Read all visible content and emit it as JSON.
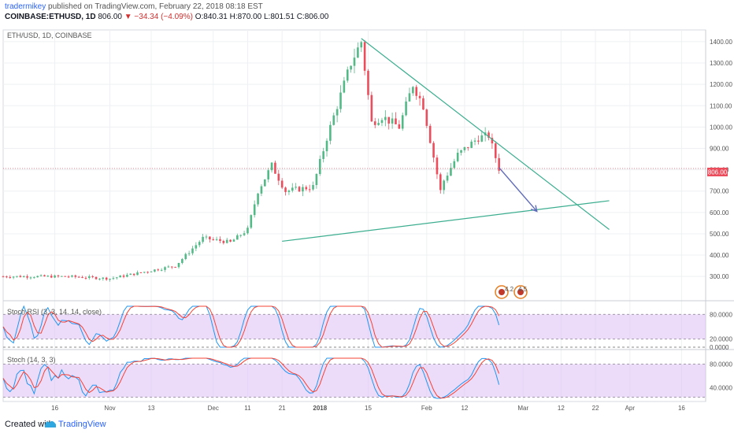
{
  "header": {
    "author": "tradermikey",
    "published": "published on TradingView.com, February 22, 2018 08:18 EST",
    "symbol": "COINBASE:ETHUSD, 1D",
    "last": "806.00",
    "change": "−34.34 (−4.09%)",
    "ohlc": "O:840.31 H:870.00 L:801.51 C:806.00"
  },
  "main_pane": {
    "legend": "ETH/USD, 1D, COINBASE",
    "price_label": "806.00",
    "event_badges": [
      "4.2",
      "4.5"
    ]
  },
  "rsi_pane": {
    "legend": "Stoch RSI (3, 3, 14, 14, close)",
    "levels": [
      "80.0000",
      "20.0000",
      "0.0000"
    ]
  },
  "stoch_pane": {
    "legend": "Stoch (14, 3, 3)",
    "levels": [
      "80.0000",
      "40.0000"
    ]
  },
  "footer": {
    "created": "Created with",
    "brand": "TradingView"
  },
  "colors": {
    "up": "#53b987",
    "down": "#eb4d5c",
    "trend": "#3cae8f",
    "arrow": "#5f6bb8",
    "band": "#e0c4f7",
    "k": "#2196f3",
    "d": "#f44336"
  },
  "chart_data": {
    "type": "candlestick",
    "title": "ETH/USD, 1D, COINBASE",
    "y_ticks": [
      300,
      400,
      500,
      600,
      700,
      800,
      900,
      1000,
      1100,
      1200,
      1300,
      1400
    ],
    "x_ticks": [
      "16",
      "Nov",
      "13",
      "Dec",
      "11",
      "21",
      "2018",
      "15",
      "Feb",
      "12",
      "Mar",
      "12",
      "22",
      "Apr",
      "16"
    ],
    "last_price": 806.0,
    "price_anchors": [
      [
        "2017-10-01",
        300
      ],
      [
        "2017-10-20",
        300
      ],
      [
        "2017-11-01",
        290
      ],
      [
        "2017-11-20",
        350
      ],
      [
        "2017-11-28",
        480
      ],
      [
        "2017-12-06",
        460
      ],
      [
        "2017-12-11",
        520
      ],
      [
        "2017-12-14",
        700
      ],
      [
        "2017-12-18",
        820
      ],
      [
        "2017-12-22",
        700
      ],
      [
        "2017-12-30",
        720
      ],
      [
        "2018-01-03",
        950
      ],
      [
        "2018-01-07",
        1150
      ],
      [
        "2018-01-10",
        1300
      ],
      [
        "2018-01-13",
        1400
      ],
      [
        "2018-01-16",
        1020
      ],
      [
        "2018-01-19",
        1050
      ],
      [
        "2018-01-24",
        1000
      ],
      [
        "2018-01-28",
        1200
      ],
      [
        "2018-01-31",
        1100
      ],
      [
        "2018-02-05",
        700
      ],
      [
        "2018-02-06",
        750
      ],
      [
        "2018-02-10",
        870
      ],
      [
        "2018-02-16",
        950
      ],
      [
        "2018-02-19",
        960
      ],
      [
        "2018-02-22",
        806
      ]
    ],
    "trend_upper": [
      [
        "2018-01-13",
        1415
      ],
      [
        "2018-03-26",
        520
      ]
    ],
    "trend_lower": [
      [
        "2017-12-21",
        465
      ],
      [
        "2018-03-26",
        655
      ]
    ],
    "projection_arrow": [
      [
        "2018-02-22",
        810
      ],
      [
        "2018-03-05",
        605
      ]
    ],
    "stoch_rsi_levels": [
      80,
      20,
      0
    ],
    "stoch_levels": [
      80,
      40
    ]
  }
}
